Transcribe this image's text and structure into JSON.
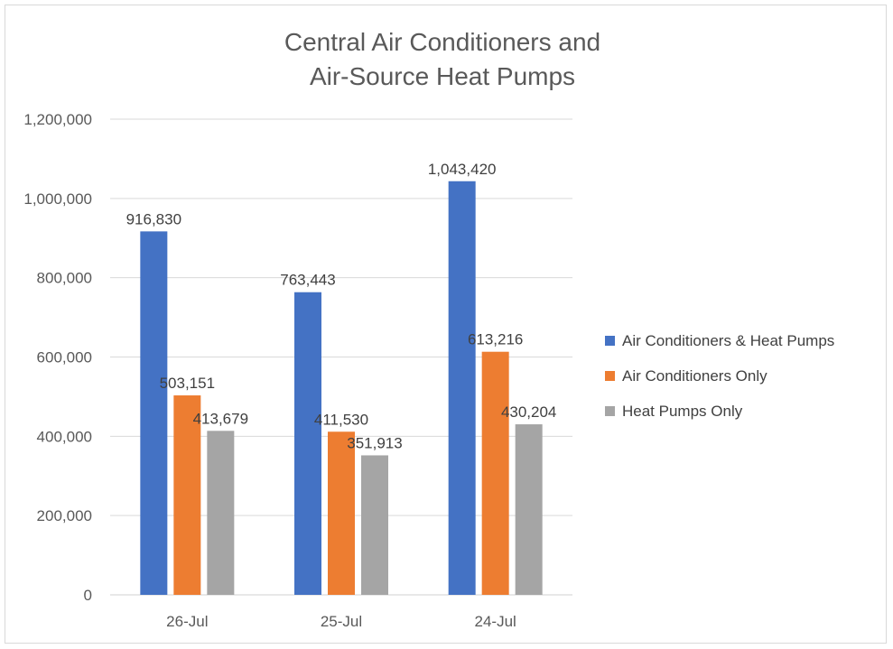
{
  "chart_data": {
    "type": "bar",
    "title": [
      "Central Air Conditioners and",
      "Air-Source Heat Pumps"
    ],
    "categories": [
      "26-Jul",
      "25-Jul",
      "24-Jul"
    ],
    "series": [
      {
        "name": "Air Conditioners & Heat Pumps",
        "color": "#4472c4",
        "values": [
          916830,
          763443,
          1043420
        ],
        "labels": [
          "916,830",
          "763,443",
          "1,043,420"
        ]
      },
      {
        "name": "Air Conditioners Only",
        "color": "#ed7d31",
        "values": [
          503151,
          411530,
          613216
        ],
        "labels": [
          "503,151",
          "411,530",
          "613,216"
        ]
      },
      {
        "name": "Heat Pumps Only",
        "color": "#a5a5a5",
        "values": [
          413679,
          351913,
          430204
        ],
        "labels": [
          "413,679",
          "351,913",
          "430,204"
        ]
      }
    ],
    "ylim": [
      0,
      1200000
    ],
    "yticks": [
      "0",
      "200,000",
      "400,000",
      "600,000",
      "800,000",
      "1,000,000",
      "1,200,000"
    ],
    "grid": true,
    "legend_position": "right"
  }
}
